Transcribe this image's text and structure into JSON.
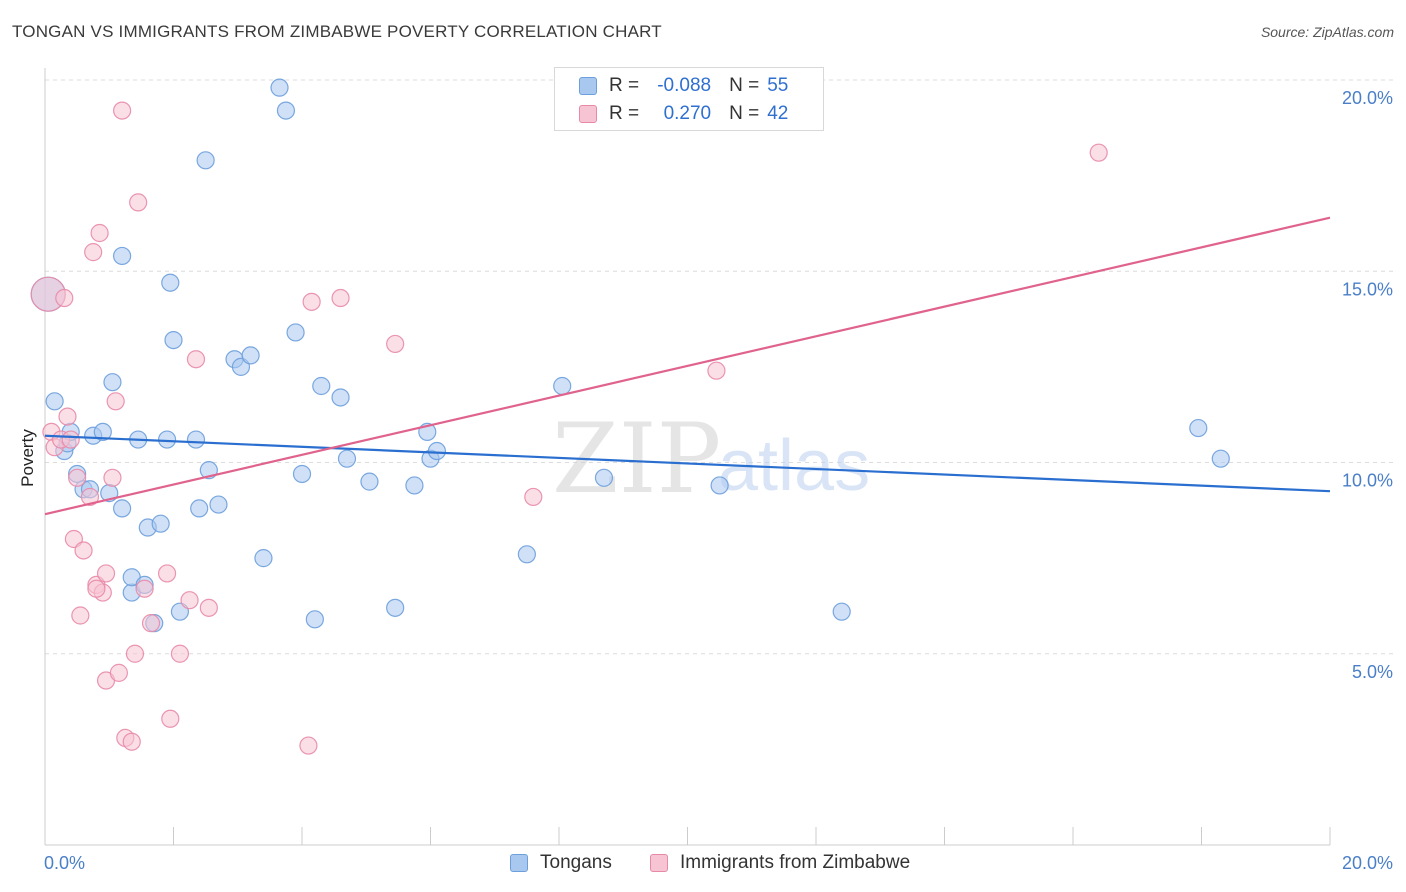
{
  "header": {
    "title": "TONGAN VS IMMIGRANTS FROM ZIMBABWE POVERTY CORRELATION CHART",
    "source": "Source: ZipAtlas.com"
  },
  "watermark": {
    "zip": "ZIP",
    "atlas": "atlas"
  },
  "legend": {
    "rows": [
      {
        "r_label": "R =",
        "r_value": "-0.088",
        "n_label": "N =",
        "n_value": "55",
        "color": "#a9c8f0",
        "border": "#6d9fdc"
      },
      {
        "r_label": "R =",
        "r_value": "0.270",
        "n_label": "N =",
        "n_value": "42",
        "color": "#f7c4d4",
        "border": "#e889a8"
      }
    ]
  },
  "bottom_legend": {
    "items": [
      {
        "label": "Tongans",
        "color": "#a9c8f0",
        "border": "#6d9fdc"
      },
      {
        "label": "Immigrants from Zimbabwe",
        "color": "#f7c4d4",
        "border": "#e889a8"
      }
    ]
  },
  "chart_data": {
    "type": "scatter",
    "title": "TONGAN VS IMMIGRANTS FROM ZIMBABWE POVERTY CORRELATION CHART",
    "xlabel": "",
    "ylabel": "Poverty",
    "xlim": [
      0,
      20
    ],
    "ylim": [
      0,
      20.5
    ],
    "x_tick_labels": [
      "0.0%",
      "20.0%"
    ],
    "y_ticks": [
      5,
      10,
      15,
      20
    ],
    "y_tick_labels": [
      "5.0%",
      "10.0%",
      "15.0%",
      "20.0%"
    ],
    "grid": true,
    "legend_position": "top-center",
    "series": [
      {
        "name": "Tongans",
        "color": "#6d9fdc",
        "fill": "#a9c8f0",
        "line_color": "#2a6fd0",
        "trend": [
          [
            0,
            10.7
          ],
          [
            20,
            9.25
          ]
        ],
        "points": [
          [
            0.05,
            14.4
          ],
          [
            0.15,
            11.6
          ],
          [
            0.3,
            10.3
          ],
          [
            0.35,
            10.5
          ],
          [
            0.4,
            10.8
          ],
          [
            0.5,
            9.7
          ],
          [
            0.6,
            9.3
          ],
          [
            0.7,
            9.3
          ],
          [
            0.75,
            10.7
          ],
          [
            0.9,
            10.8
          ],
          [
            1.0,
            9.2
          ],
          [
            1.05,
            12.1
          ],
          [
            1.2,
            8.8
          ],
          [
            1.2,
            15.4
          ],
          [
            1.35,
            6.6
          ],
          [
            1.35,
            7.0
          ],
          [
            1.45,
            10.6
          ],
          [
            1.55,
            6.8
          ],
          [
            1.6,
            8.3
          ],
          [
            1.7,
            5.8
          ],
          [
            1.8,
            8.4
          ],
          [
            1.9,
            10.6
          ],
          [
            1.95,
            14.7
          ],
          [
            2.0,
            13.2
          ],
          [
            2.1,
            6.1
          ],
          [
            2.35,
            10.6
          ],
          [
            2.4,
            8.8
          ],
          [
            2.5,
            17.9
          ],
          [
            2.55,
            9.8
          ],
          [
            2.7,
            8.9
          ],
          [
            2.95,
            12.7
          ],
          [
            3.05,
            12.5
          ],
          [
            3.2,
            12.8
          ],
          [
            3.4,
            7.5
          ],
          [
            3.65,
            19.8
          ],
          [
            3.75,
            19.2
          ],
          [
            3.9,
            13.4
          ],
          [
            4.0,
            9.7
          ],
          [
            4.2,
            5.9
          ],
          [
            4.3,
            12.0
          ],
          [
            4.6,
            11.7
          ],
          [
            4.7,
            10.1
          ],
          [
            5.05,
            9.5
          ],
          [
            5.45,
            6.2
          ],
          [
            5.75,
            9.4
          ],
          [
            5.95,
            10.8
          ],
          [
            6.0,
            10.1
          ],
          [
            6.1,
            10.3
          ],
          [
            7.5,
            7.6
          ],
          [
            8.05,
            12.0
          ],
          [
            8.7,
            9.6
          ],
          [
            10.5,
            9.4
          ],
          [
            12.4,
            6.1
          ],
          [
            17.95,
            10.9
          ],
          [
            18.3,
            10.1
          ]
        ]
      },
      {
        "name": "Immigrants from Zimbabwe",
        "color": "#e889a8",
        "fill": "#f7c4d4",
        "line_color": "#e0638d",
        "trend": [
          [
            0,
            8.65
          ],
          [
            20,
            16.4
          ]
        ],
        "points": [
          [
            0.05,
            14.4
          ],
          [
            0.1,
            10.8
          ],
          [
            0.15,
            10.4
          ],
          [
            0.25,
            10.6
          ],
          [
            0.3,
            14.3
          ],
          [
            0.35,
            11.2
          ],
          [
            0.4,
            10.6
          ],
          [
            0.45,
            8.0
          ],
          [
            0.5,
            9.6
          ],
          [
            0.55,
            6.0
          ],
          [
            0.6,
            7.7
          ],
          [
            0.7,
            9.1
          ],
          [
            0.75,
            15.5
          ],
          [
            0.8,
            6.8
          ],
          [
            0.85,
            16.0
          ],
          [
            0.9,
            6.6
          ],
          [
            0.95,
            7.1
          ],
          [
            0.95,
            4.3
          ],
          [
            1.05,
            9.6
          ],
          [
            1.1,
            11.6
          ],
          [
            1.15,
            4.5
          ],
          [
            1.2,
            19.2
          ],
          [
            1.25,
            2.8
          ],
          [
            1.35,
            2.7
          ],
          [
            1.4,
            5.0
          ],
          [
            1.45,
            16.8
          ],
          [
            1.55,
            6.7
          ],
          [
            1.65,
            5.8
          ],
          [
            1.9,
            7.1
          ],
          [
            1.95,
            3.3
          ],
          [
            2.1,
            5.0
          ],
          [
            2.25,
            6.4
          ],
          [
            2.35,
            12.7
          ],
          [
            2.55,
            6.2
          ],
          [
            4.1,
            2.6
          ],
          [
            4.15,
            14.2
          ],
          [
            4.6,
            14.3
          ],
          [
            5.45,
            13.1
          ],
          [
            7.6,
            9.1
          ],
          [
            10.45,
            12.4
          ],
          [
            16.4,
            18.1
          ],
          [
            0.8,
            6.7
          ]
        ]
      }
    ]
  }
}
